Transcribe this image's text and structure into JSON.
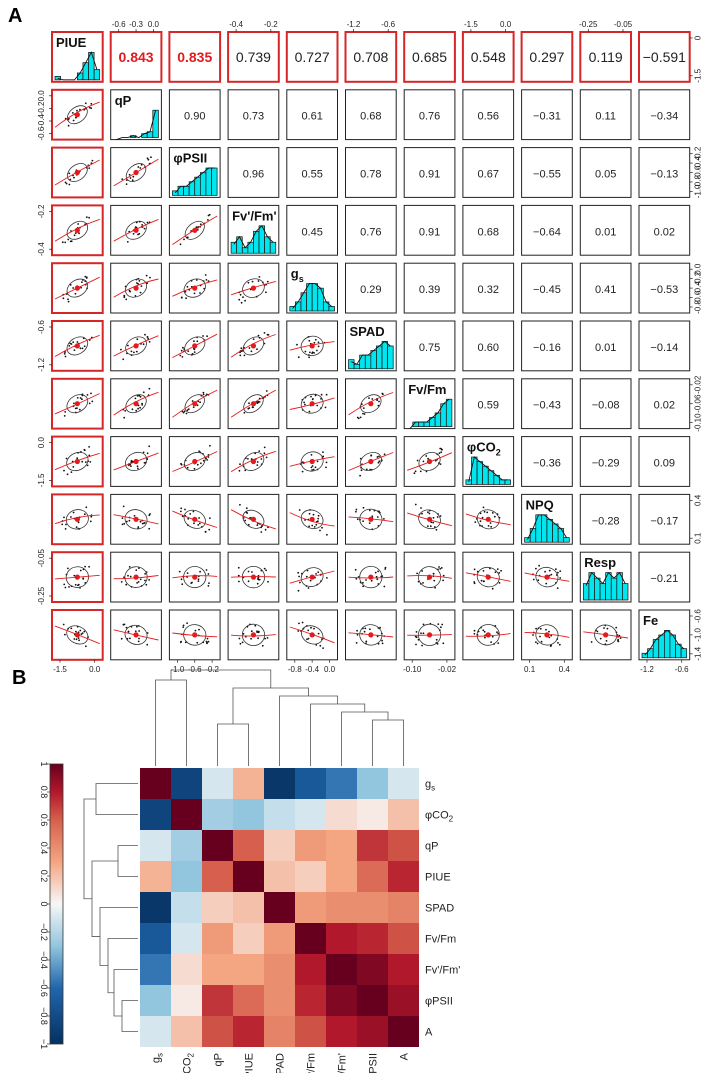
{
  "panel_a_label": "A",
  "panel_b_label": "B",
  "chart_data": [
    {
      "type": "scatter-matrix",
      "variables": [
        "PIUE",
        "qP",
        "φPSII",
        "Fv'/Fm'",
        "gs",
        "SPAD",
        "Fv/Fm",
        "φCO2",
        "NPQ",
        "Resp",
        "Fe"
      ],
      "diagonal_labels": [
        "PIUE",
        "qP",
        "φPSII",
        "Fv'/Fm'",
        "g",
        "SPAD",
        "Fv/Fm",
        "φCO",
        "NPQ",
        "Resp",
        "Fe"
      ],
      "diagonal_subscripts": [
        "",
        "",
        "",
        "",
        "s",
        "",
        "",
        "2",
        "",
        "",
        ""
      ],
      "correlations": [
        [
          "0.843",
          "0.835",
          "0.739",
          "0.727",
          "0.708",
          "0.685",
          "0.548",
          "0.297",
          "0.119",
          "−0.591"
        ],
        [
          "0.90",
          "0.73",
          "0.61",
          "0.68",
          "0.76",
          "0.56",
          "−0.31",
          "0.11",
          "−0.34"
        ],
        [
          "0.96",
          "0.55",
          "0.78",
          "0.91",
          "0.67",
          "−0.55",
          "0.05",
          "−0.13"
        ],
        [
          "0.45",
          "0.76",
          "0.91",
          "0.68",
          "−0.64",
          "0.01",
          "0.02"
        ],
        [
          "0.29",
          "0.39",
          "0.32",
          "−0.45",
          "0.41",
          "−0.53"
        ],
        [
          "0.75",
          "0.60",
          "−0.16",
          "0.01",
          "−0.14"
        ],
        [
          "0.59",
          "−0.43",
          "−0.08",
          "0.02"
        ],
        [
          "−0.36",
          "−0.29",
          "0.09"
        ],
        [
          "−0.28",
          "−0.17"
        ],
        [
          "−0.21"
        ]
      ],
      "highlighted": [
        "0.843",
        "0.835"
      ],
      "top_axis_ticks": [
        {
          "column": "qP",
          "labels": [
            "-0.6",
            "-0.3",
            "0.0"
          ]
        },
        {
          "column": "Fv'/Fm'",
          "labels": [
            "-0.4",
            "-0.2"
          ]
        },
        {
          "column": "SPAD",
          "labels": [
            "-1.2",
            "-0.6"
          ]
        },
        {
          "column": "φCO2",
          "labels": [
            "-1.5",
            "0.0"
          ]
        },
        {
          "column": "Resp",
          "labels": [
            "-0.25",
            "-0.05"
          ]
        }
      ],
      "bottom_axis_ticks": [
        {
          "column": "PIUE",
          "labels": [
            "-1.5",
            "0.0"
          ]
        },
        {
          "column": "φPSII",
          "labels": [
            "-1.0",
            "-0.6",
            "-0.2"
          ]
        },
        {
          "column": "gs",
          "labels": [
            "-0.8",
            "-0.4",
            "0.0"
          ]
        },
        {
          "column": "Fv/Fm",
          "labels": [
            "-0.10",
            "-0.02"
          ]
        },
        {
          "column": "NPQ",
          "labels": [
            "0.1",
            "0.4"
          ]
        },
        {
          "column": "Fe",
          "labels": [
            "-1.2",
            "-0.6"
          ]
        }
      ],
      "left_axis_ticks": [
        {
          "row": "qP",
          "labels": [
            "0.0",
            "-0.2",
            "-0.4",
            "-0.6"
          ]
        },
        {
          "row": "Fv'/Fm'",
          "labels": [
            "-0.2",
            "-0.4"
          ]
        },
        {
          "row": "SPAD",
          "labels": [
            "-0.6",
            "-1.2"
          ]
        },
        {
          "row": "φCO2",
          "labels": [
            "0.0",
            "-1.5"
          ]
        },
        {
          "row": "Resp",
          "labels": [
            "-0.05",
            "-0.25"
          ]
        }
      ],
      "right_axis_ticks": [
        {
          "row": "PIUE",
          "labels": [
            "0",
            "-1.5"
          ]
        },
        {
          "row": "φPSII",
          "labels": [
            "-0.2",
            "-0.4",
            "-0.6",
            "-0.8",
            "-1.0"
          ]
        },
        {
          "row": "gs",
          "labels": [
            "0.0",
            "-0.2",
            "-0.4",
            "-0.6",
            "-0.8"
          ]
        },
        {
          "row": "Fv/Fm",
          "labels": [
            "-0.02",
            "-0.06",
            "-0.10"
          ]
        },
        {
          "row": "NPQ",
          "labels": [
            "0.4",
            "0.1"
          ]
        },
        {
          "row": "Fe",
          "labels": [
            "-0.6",
            "-1.0",
            "-1.4"
          ]
        }
      ],
      "histograms": [
        [
          1,
          0,
          0,
          0,
          2,
          5,
          8,
          3
        ],
        [
          0,
          0,
          0,
          1,
          0,
          2,
          3,
          14
        ],
        [
          1,
          2,
          2,
          3,
          4,
          5,
          6,
          6
        ],
        [
          2,
          3,
          1,
          2,
          4,
          5,
          3,
          2
        ],
        [
          1,
          2,
          4,
          6,
          6,
          5,
          2,
          1
        ],
        [
          2,
          1,
          3,
          3,
          4,
          5,
          6,
          5
        ],
        [
          0,
          1,
          1,
          1,
          2,
          3,
          5,
          6
        ],
        [
          1,
          6,
          5,
          4,
          3,
          2,
          1,
          1
        ],
        [
          1,
          3,
          6,
          6,
          5,
          4,
          3,
          1
        ],
        [
          3,
          5,
          4,
          3,
          5,
          4,
          5,
          3
        ],
        [
          1,
          2,
          4,
          5,
          6,
          5,
          3,
          2
        ]
      ]
    },
    {
      "type": "heatmap",
      "rows": [
        "gs",
        "φCO2",
        "qP",
        "PIUE",
        "SPAD",
        "Fv/Fm",
        "Fv'/Fm'",
        "φPSII",
        "A"
      ],
      "row_labels": [
        {
          "text": "g",
          "sub": "s"
        },
        {
          "text": "φCO",
          "sub": "2"
        },
        {
          "text": "qP",
          "sub": ""
        },
        {
          "text": "PIUE",
          "sub": ""
        },
        {
          "text": "SPAD",
          "sub": ""
        },
        {
          "text": "Fv/Fm",
          "sub": ""
        },
        {
          "text": "Fv'/Fm'",
          "sub": ""
        },
        {
          "text": "φPSII",
          "sub": ""
        },
        {
          "text": "A",
          "sub": ""
        }
      ],
      "columns": [
        "gs",
        "φCO2",
        "qP",
        "PIUE",
        "SPAD",
        "Fv/Fm",
        "Fv'/Fm'",
        "φPSII",
        "A"
      ],
      "col_labels": [
        {
          "text": "g",
          "sub": "s"
        },
        {
          "text": "φCO",
          "sub": "2"
        },
        {
          "text": "qP",
          "sub": ""
        },
        {
          "text": "PIUE",
          "sub": ""
        },
        {
          "text": "SPAD",
          "sub": ""
        },
        {
          "text": "Fv/Fm",
          "sub": ""
        },
        {
          "text": "Fv'/Fm'",
          "sub": ""
        },
        {
          "text": "φPSII",
          "sub": ""
        },
        {
          "text": "A",
          "sub": ""
        }
      ],
      "values": [
        [
          1.0,
          -0.85,
          -0.1,
          0.25,
          -0.95,
          -0.7,
          -0.55,
          -0.3,
          -0.1
        ],
        [
          -0.85,
          1.0,
          -0.25,
          -0.3,
          -0.15,
          -0.1,
          0.1,
          0.05,
          0.2
        ],
        [
          -0.1,
          -0.25,
          1.0,
          0.6,
          0.15,
          0.35,
          0.3,
          0.75,
          0.65
        ],
        [
          0.25,
          -0.3,
          0.6,
          1.0,
          0.2,
          0.15,
          0.3,
          0.55,
          0.8
        ],
        [
          -0.95,
          -0.15,
          0.15,
          0.2,
          1.0,
          0.35,
          0.4,
          0.4,
          0.45
        ],
        [
          -0.7,
          -0.1,
          0.35,
          0.15,
          0.35,
          1.0,
          0.85,
          0.8,
          0.65
        ],
        [
          -0.55,
          0.1,
          0.3,
          0.3,
          0.4,
          0.85,
          1.0,
          0.95,
          0.85
        ],
        [
          -0.3,
          0.05,
          0.75,
          0.55,
          0.4,
          0.8,
          0.95,
          1.0,
          0.9
        ],
        [
          -0.1,
          0.2,
          0.65,
          0.8,
          0.45,
          0.65,
          0.85,
          0.9,
          1.0
        ]
      ],
      "colorbar": {
        "range": [
          -1,
          1
        ],
        "tick_labels": [
          "1",
          "0.8",
          "0.6",
          "0.4",
          "0.2",
          "0",
          "−0.2",
          "−0.4",
          "−0.6",
          "−0.8",
          "−1"
        ]
      },
      "colors": {
        "high": "#67001f",
        "mid": "#f7f7f7",
        "low": "#053061"
      }
    }
  ]
}
